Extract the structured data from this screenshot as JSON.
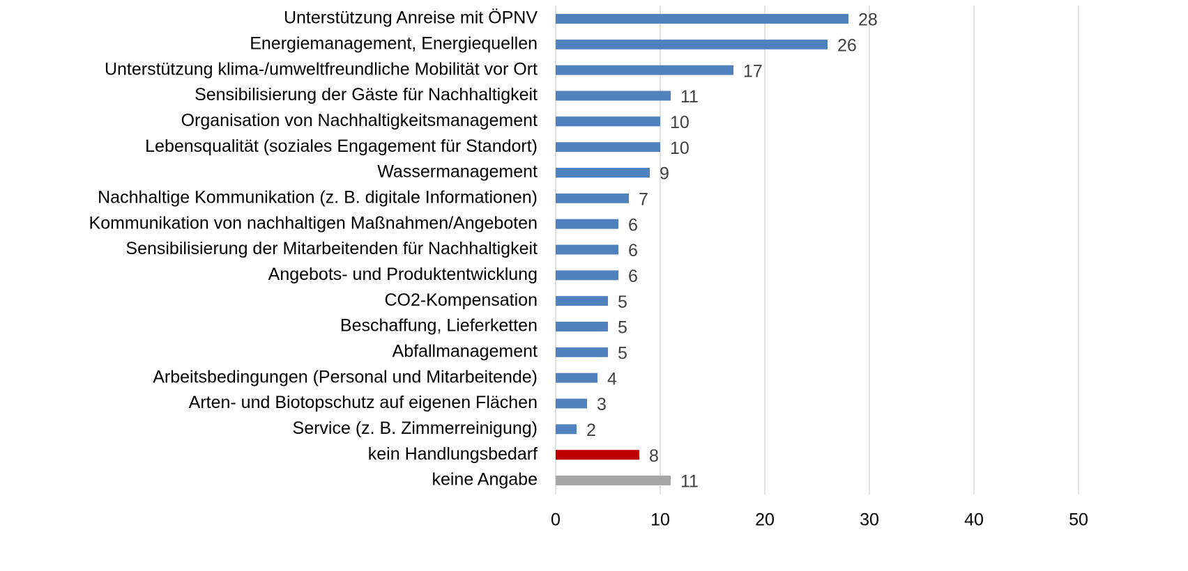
{
  "chart_data": {
    "type": "bar",
    "orientation": "horizontal",
    "categories": [
      "Unterstützung Anreise mit ÖPNV",
      "Energiemanagement, Energiequellen",
      "Unterstützung klima-/umweltfreundliche Mobilität vor Ort",
      "Sensibilisierung der Gäste für Nachhaltigkeit",
      "Organisation von Nachhaltigkeitsmanagement",
      "Lebensqualität (soziales Engagement für Standort)",
      "Wassermanagement",
      "Nachhaltige Kommunikation (z. B. digitale Informationen)",
      "Kommunikation von nachhaltigen Maßnahmen/Angeboten",
      "Sensibilisierung der Mitarbeitenden für Nachhaltigkeit",
      "Angebots- und Produktentwicklung",
      "CO2-Kompensation",
      "Beschaffung, Lieferketten",
      "Abfallmanagement",
      "Arbeitsbedingungen (Personal und Mitarbeitende)",
      "Arten- und Biotopschutz auf eigenen Flächen",
      "Service (z. B. Zimmerreinigung)",
      "kein Handlungsbedarf",
      "keine Angabe"
    ],
    "values": [
      28,
      26,
      17,
      11,
      10,
      10,
      9,
      7,
      6,
      6,
      6,
      5,
      5,
      5,
      4,
      3,
      2,
      8,
      11
    ],
    "colors": [
      "#4f81bd",
      "#4f81bd",
      "#4f81bd",
      "#4f81bd",
      "#4f81bd",
      "#4f81bd",
      "#4f81bd",
      "#4f81bd",
      "#4f81bd",
      "#4f81bd",
      "#4f81bd",
      "#4f81bd",
      "#4f81bd",
      "#4f81bd",
      "#4f81bd",
      "#4f81bd",
      "#4f81bd",
      "#c00000",
      "#a6a6a6"
    ],
    "xlim": [
      0,
      50
    ],
    "xticks": [
      0,
      10,
      20,
      30,
      40,
      50
    ],
    "grid": true
  }
}
